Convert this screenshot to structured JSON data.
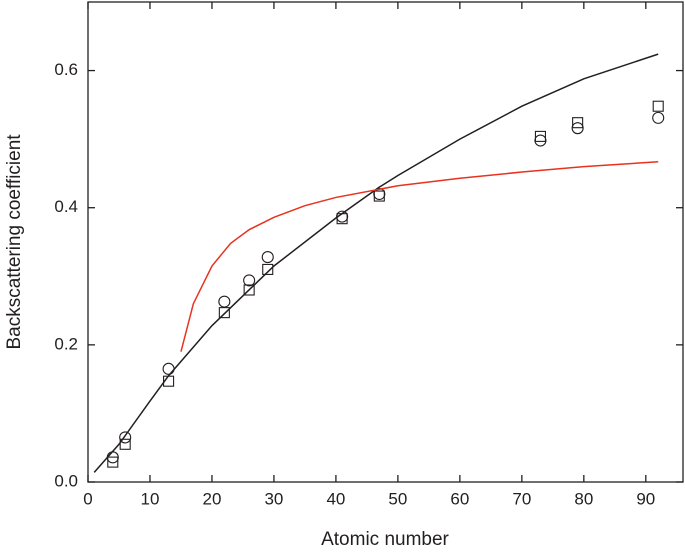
{
  "chart_data": {
    "type": "scatter",
    "xlabel": "Atomic number",
    "ylabel": "Backscattering coefficient",
    "xlim": [
      0,
      96
    ],
    "ylim": [
      0,
      0.7
    ],
    "xticks": [
      0,
      10,
      20,
      30,
      40,
      50,
      60,
      70,
      80,
      90
    ],
    "yticks": [
      {
        "value": 0,
        "label": "0.0"
      },
      0.2,
      0.4,
      0.6
    ],
    "series": [
      {
        "marker": "circle",
        "color": "#231f20",
        "x": [
          4,
          6,
          13,
          22,
          26,
          29,
          41,
          47,
          73,
          79,
          92
        ],
        "values": [
          0.036,
          0.065,
          0.165,
          0.263,
          0.294,
          0.328,
          0.387,
          0.42,
          0.498,
          0.516,
          0.531
        ]
      },
      {
        "marker": "square",
        "color": "#231f20",
        "x": [
          4,
          6,
          13,
          22,
          26,
          29,
          41,
          47,
          73,
          79,
          92
        ],
        "values": [
          0.029,
          0.055,
          0.147,
          0.247,
          0.28,
          0.31,
          0.384,
          0.417,
          0.504,
          0.524,
          0.548
        ]
      },
      {
        "marker": "line",
        "color": "#231f20",
        "x": [
          1,
          5,
          10,
          13,
          20,
          30,
          40,
          47,
          50,
          60,
          70,
          80,
          92
        ],
        "values": [
          0.014,
          0.055,
          0.118,
          0.155,
          0.228,
          0.315,
          0.385,
          0.43,
          0.447,
          0.5,
          0.548,
          0.588,
          0.624
        ]
      },
      {
        "marker": "line",
        "color": "#e8321e",
        "x": [
          15,
          17,
          20,
          23,
          26,
          30,
          35,
          40,
          50,
          60,
          70,
          80,
          92
        ],
        "values": [
          0.19,
          0.26,
          0.315,
          0.348,
          0.368,
          0.386,
          0.403,
          0.415,
          0.432,
          0.443,
          0.452,
          0.46,
          0.467
        ]
      }
    ]
  }
}
